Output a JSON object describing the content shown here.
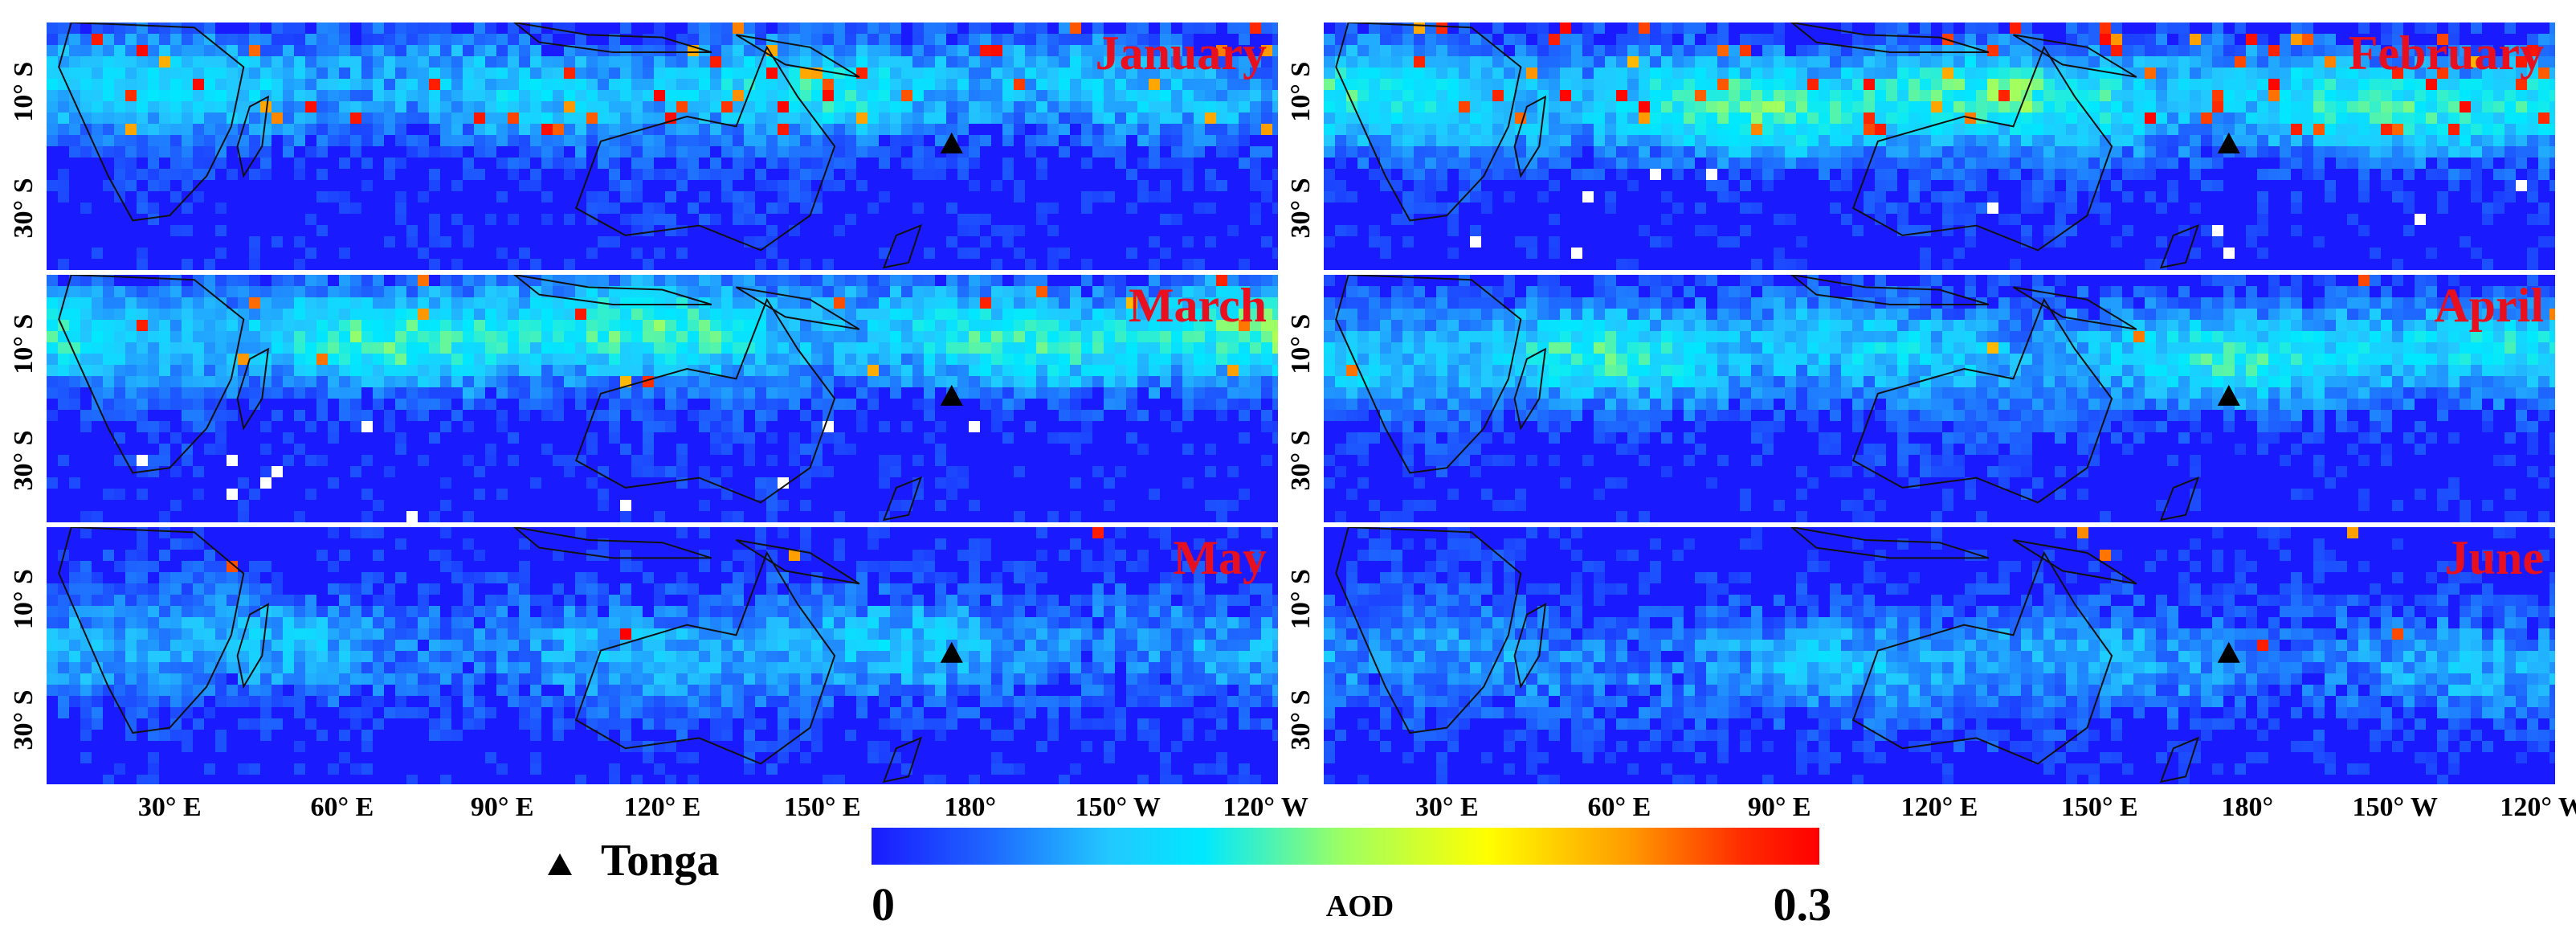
{
  "figure": {
    "variable": "AOD",
    "marker_location": "Tonga",
    "marker_legend_label": "Tonga",
    "colorbar": {
      "label": "AOD",
      "min_label": "0",
      "max_label": "0.3",
      "min": 0,
      "max": 0.3,
      "stops": [
        "#1a1aff",
        "#1e64ff",
        "#22c8ff",
        "#00e8ff",
        "#a0ff60",
        "#ffff00",
        "#ff9a00",
        "#ff2a00",
        "#ff0000"
      ]
    },
    "x_ticks": [
      "30° E",
      "60° E",
      "90° E",
      "120° E",
      "150° E",
      "180°",
      "150° W",
      "120° W"
    ],
    "y_ticks": [
      "10° S",
      "30° S"
    ],
    "panels": [
      {
        "month": "January"
      },
      {
        "month": "February"
      },
      {
        "month": "March"
      },
      {
        "month": "April"
      },
      {
        "month": "May"
      },
      {
        "month": "June"
      }
    ]
  },
  "colors": {
    "low": "#1a1aff",
    "label_red": "#e8101e",
    "land_outline": "#111111",
    "missing_pixel": "#ffffff"
  }
}
